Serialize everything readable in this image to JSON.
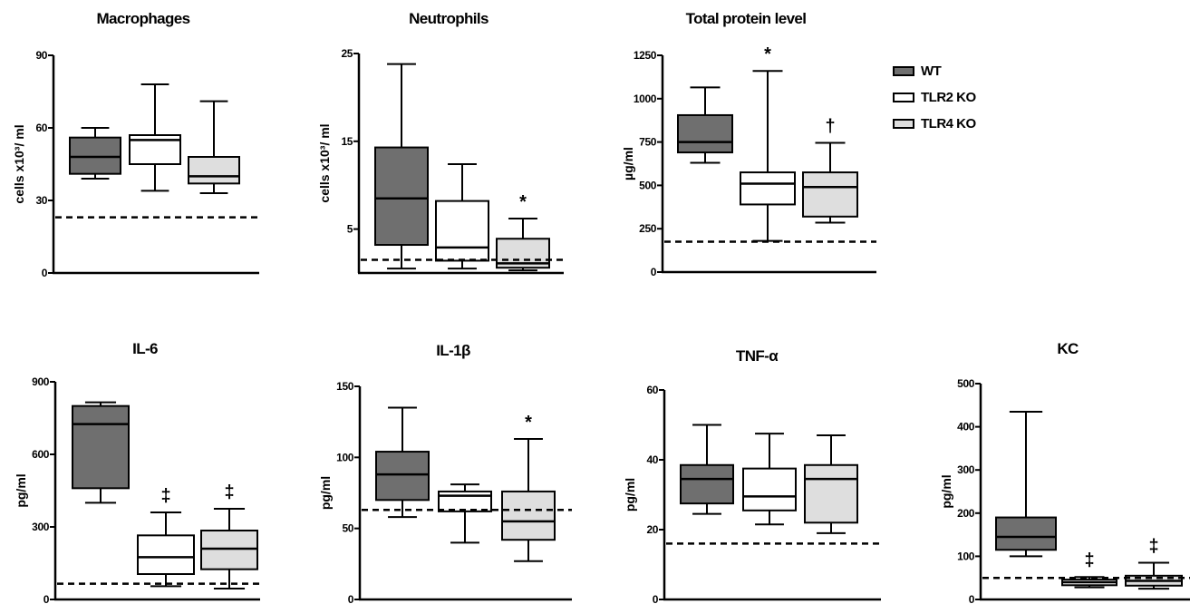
{
  "colors": {
    "WT": "#6f6f6f",
    "TLR2 KO": "#ffffff",
    "TLR4 KO": "#dedede",
    "axis": "#000000"
  },
  "legend": {
    "items": [
      {
        "label": "WT",
        "color": "#6f6f6f"
      },
      {
        "label": "TLR2 KO",
        "color": "#ffffff"
      },
      {
        "label": "TLR4 KO",
        "color": "#dedede"
      }
    ]
  },
  "chart_data": [
    {
      "type": "box",
      "title": "Macrophages",
      "ylabel": "cells x10³/ ml",
      "ylim": [
        0,
        90
      ],
      "yticks": [
        "0",
        "30",
        "60",
        "90"
      ],
      "reference_line": 23,
      "series": [
        {
          "name": "WT",
          "whisker_low": 39,
          "q1": 41,
          "median": 48,
          "q3": 56,
          "whisker_high": 60,
          "mark": ""
        },
        {
          "name": "TLR2 KO",
          "whisker_low": 34,
          "q1": 45,
          "median": 55,
          "q3": 57,
          "whisker_high": 78,
          "mark": ""
        },
        {
          "name": "TLR4 KO",
          "whisker_low": 33,
          "q1": 37,
          "median": 40,
          "q3": 48,
          "whisker_high": 71,
          "mark": ""
        }
      ]
    },
    {
      "type": "box",
      "title": "Neutrophils",
      "ylabel": "cells x10³/ ml",
      "ylim": [
        0,
        25
      ],
      "yticks": [
        "5",
        "15",
        "25"
      ],
      "reference_line": 1.5,
      "series": [
        {
          "name": "WT",
          "whisker_low": 0.5,
          "q1": 3.2,
          "median": 8.5,
          "q3": 14.3,
          "whisker_high": 23.8,
          "mark": ""
        },
        {
          "name": "TLR2 KO",
          "whisker_low": 0.5,
          "q1": 1.4,
          "median": 2.9,
          "q3": 8.2,
          "whisker_high": 12.4,
          "mark": ""
        },
        {
          "name": "TLR4 KO",
          "whisker_low": 0.3,
          "q1": 0.6,
          "median": 1.1,
          "q3": 3.9,
          "whisker_high": 6.2,
          "mark": "*"
        }
      ]
    },
    {
      "type": "box",
      "title": "Total protein level",
      "ylabel": "µg/ml",
      "ylim": [
        0,
        1250
      ],
      "yticks": [
        "0",
        "250",
        "500",
        "750",
        "1000",
        "1250"
      ],
      "reference_line": 175,
      "series": [
        {
          "name": "WT",
          "whisker_low": 630,
          "q1": 690,
          "median": 750,
          "q3": 905,
          "whisker_high": 1065,
          "mark": ""
        },
        {
          "name": "TLR2 KO",
          "whisker_low": 180,
          "q1": 390,
          "median": 510,
          "q3": 575,
          "whisker_high": 1160,
          "mark": "*"
        },
        {
          "name": "TLR4 KO",
          "whisker_low": 285,
          "q1": 320,
          "median": 490,
          "q3": 575,
          "whisker_high": 745,
          "mark": "†"
        }
      ]
    },
    {
      "type": "box",
      "title": "IL-6",
      "ylabel": "pg/ml",
      "ylim": [
        0,
        900
      ],
      "yticks": [
        "0",
        "300",
        "600",
        "900"
      ],
      "reference_line": 65,
      "series": [
        {
          "name": "WT",
          "whisker_low": 400,
          "q1": 460,
          "median": 725,
          "q3": 800,
          "whisker_high": 815,
          "mark": ""
        },
        {
          "name": "TLR2 KO",
          "whisker_low": 55,
          "q1": 105,
          "median": 175,
          "q3": 265,
          "whisker_high": 360,
          "mark": "‡"
        },
        {
          "name": "TLR4 KO",
          "whisker_low": 45,
          "q1": 125,
          "median": 210,
          "q3": 285,
          "whisker_high": 375,
          "mark": "‡"
        }
      ]
    },
    {
      "type": "box",
      "title": "IL-1β",
      "ylabel": "pg/ml",
      "ylim": [
        0,
        150
      ],
      "yticks": [
        "0",
        "50",
        "100",
        "150"
      ],
      "reference_line": 63,
      "series": [
        {
          "name": "WT",
          "whisker_low": 58,
          "q1": 70,
          "median": 88,
          "q3": 104,
          "whisker_high": 135,
          "mark": ""
        },
        {
          "name": "TLR2 KO",
          "whisker_low": 40,
          "q1": 62,
          "median": 73,
          "q3": 76,
          "whisker_high": 81,
          "mark": ""
        },
        {
          "name": "TLR4 KO",
          "whisker_low": 27,
          "q1": 42,
          "median": 55,
          "q3": 76,
          "whisker_high": 113,
          "mark": "*"
        }
      ]
    },
    {
      "type": "box",
      "title": "TNF-α",
      "ylabel": "pg/ml",
      "ylim": [
        0,
        60
      ],
      "yticks": [
        "0",
        "20",
        "40",
        "60"
      ],
      "reference_line": 16,
      "series": [
        {
          "name": "WT",
          "whisker_low": 24.5,
          "q1": 27.5,
          "median": 34.5,
          "q3": 38.5,
          "whisker_high": 50,
          "mark": ""
        },
        {
          "name": "TLR2 KO",
          "whisker_low": 21.5,
          "q1": 25.5,
          "median": 29.5,
          "q3": 37.5,
          "whisker_high": 47.5,
          "mark": ""
        },
        {
          "name": "TLR4 KO",
          "whisker_low": 19,
          "q1": 22,
          "median": 34.5,
          "q3": 38.5,
          "whisker_high": 47,
          "mark": ""
        }
      ]
    },
    {
      "type": "box",
      "title": "KC",
      "ylabel": "pg/ml",
      "ylim": [
        0,
        500
      ],
      "yticks": [
        "0",
        "100",
        "200",
        "300",
        "400",
        "500"
      ],
      "reference_line": 50,
      "series": [
        {
          "name": "WT",
          "whisker_low": 100,
          "q1": 115,
          "median": 145,
          "q3": 190,
          "whisker_high": 435,
          "mark": ""
        },
        {
          "name": "TLR2 KO",
          "whisker_low": 28,
          "q1": 33,
          "median": 40,
          "q3": 46,
          "whisker_high": 52,
          "mark": "‡"
        },
        {
          "name": "TLR4 KO",
          "whisker_low": 25,
          "q1": 32,
          "median": 43,
          "q3": 55,
          "whisker_high": 85,
          "mark": "‡"
        }
      ]
    }
  ]
}
